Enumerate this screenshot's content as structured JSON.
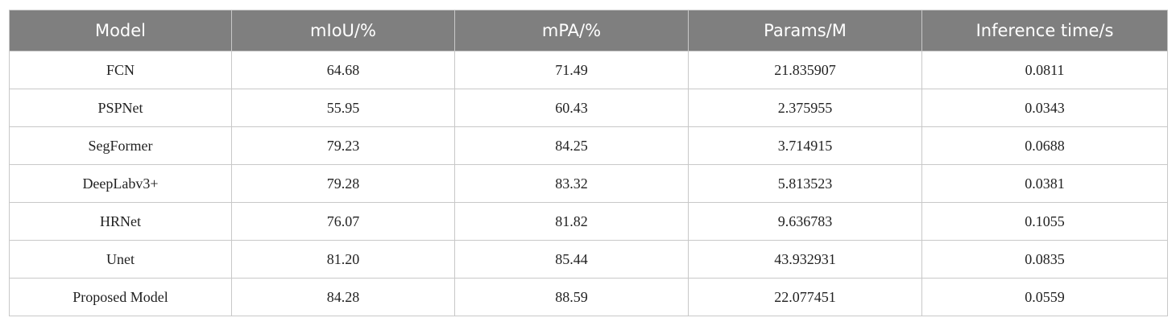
{
  "table": {
    "header": [
      "Model",
      "mIoU/%",
      "mPA/%",
      "Params/M",
      "Inference time/s"
    ],
    "rows": [
      [
        "FCN",
        "64.68",
        "71.49",
        "21.835907",
        "0.0811"
      ],
      [
        "PSPNet",
        "55.95",
        "60.43",
        "2.375955",
        "0.0343"
      ],
      [
        "SegFormer",
        "79.23",
        "84.25",
        "3.714915",
        "0.0688"
      ],
      [
        "DeepLabv3+",
        "79.28",
        "83.32",
        "5.813523",
        "0.0381"
      ],
      [
        "HRNet",
        "76.07",
        "81.82",
        "9.636783",
        "0.1055"
      ],
      [
        "Unet",
        "81.20",
        "85.44",
        "43.932931",
        "0.0835"
      ],
      [
        "Proposed Model",
        "84.28",
        "88.59",
        "22.077451",
        "0.0559"
      ]
    ]
  }
}
